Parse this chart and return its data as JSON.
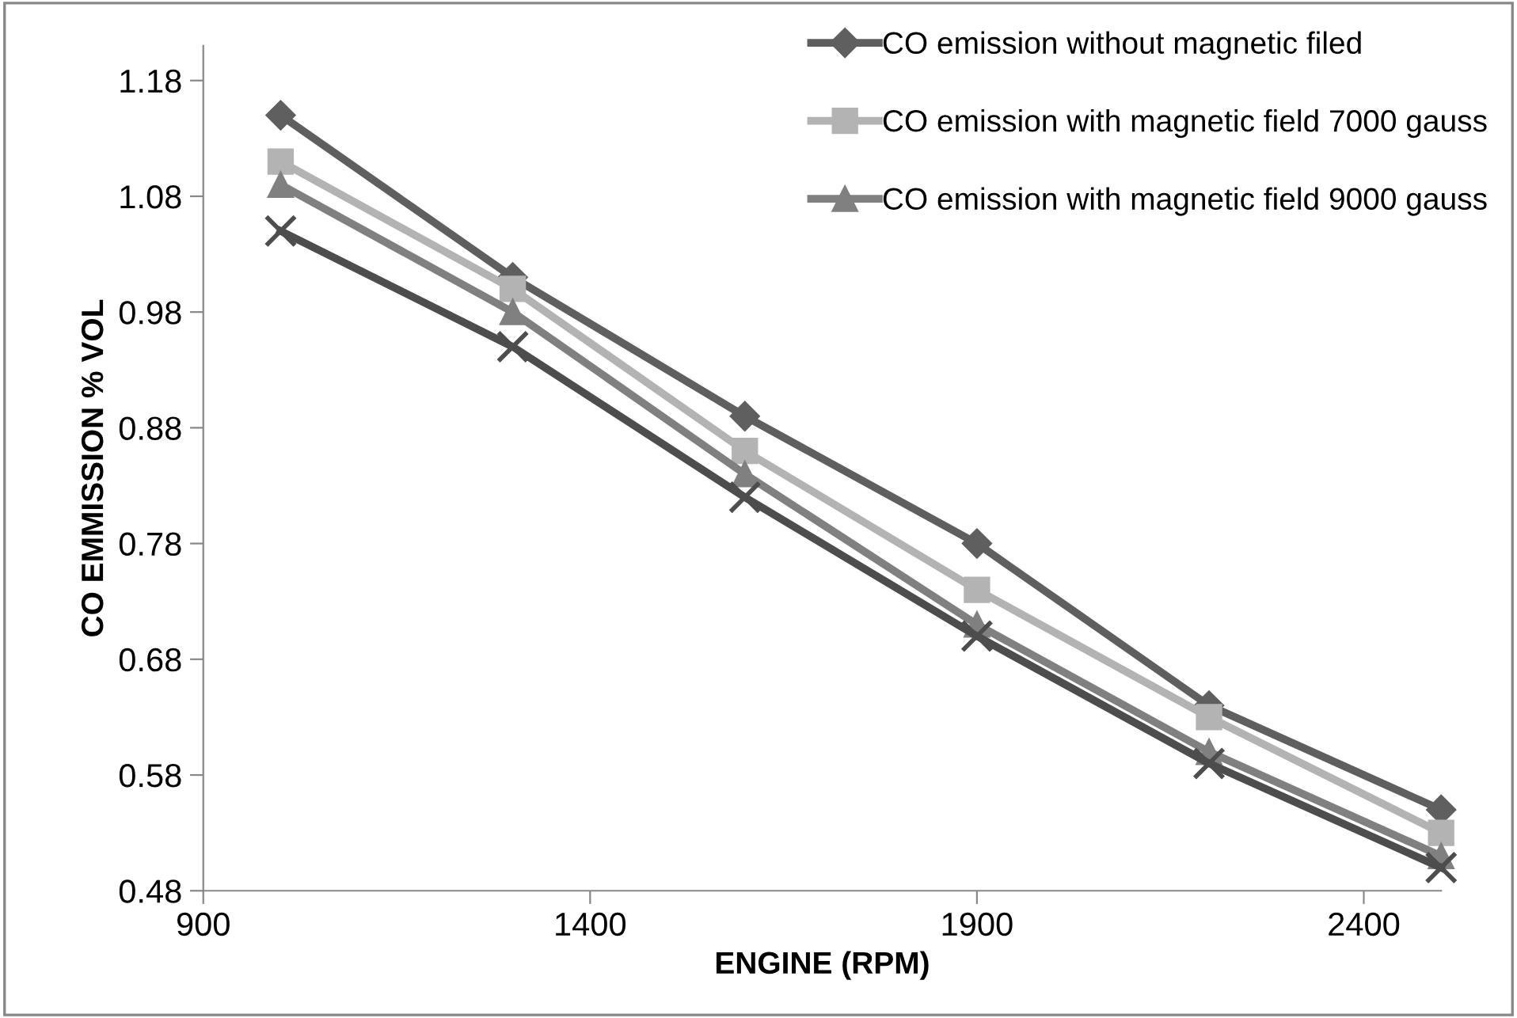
{
  "chart_data": {
    "type": "line",
    "xlabel": "ENGINE (RPM)",
    "ylabel": "CO EMMISSION % VOL",
    "x": [
      1000,
      1300,
      1600,
      1900,
      2200,
      2500
    ],
    "series": [
      {
        "name": "CO emission without magnetic filed",
        "color": "#5f5f5f",
        "marker": "diamond",
        "values": [
          1.15,
          1.01,
          0.89,
          0.78,
          0.64,
          0.55
        ]
      },
      {
        "name": "CO emission with magnetic field 7000 gauss",
        "color": "#b3b3b3",
        "marker": "square",
        "values": [
          1.11,
          1.0,
          0.86,
          0.74,
          0.63,
          0.53
        ]
      },
      {
        "name": "CO emission with magnetic field 9000 gauss",
        "color": "#808080",
        "marker": "triangle",
        "values": [
          1.09,
          0.98,
          0.84,
          0.71,
          0.6,
          0.51
        ]
      },
      {
        "color": "#4d4d4d",
        "marker": "cross",
        "values": [
          1.05,
          0.95,
          0.82,
          0.7,
          0.59,
          0.5
        ]
      }
    ],
    "xlim": [
      900,
      2500
    ],
    "ylim": [
      0.48,
      1.21
    ],
    "xticks": [
      900,
      1400,
      1900,
      2400
    ],
    "yticks": [
      1.18,
      1.08,
      0.98,
      0.88,
      0.78,
      0.68,
      0.58,
      0.48
    ],
    "legend": "top right",
    "grid": false
  }
}
